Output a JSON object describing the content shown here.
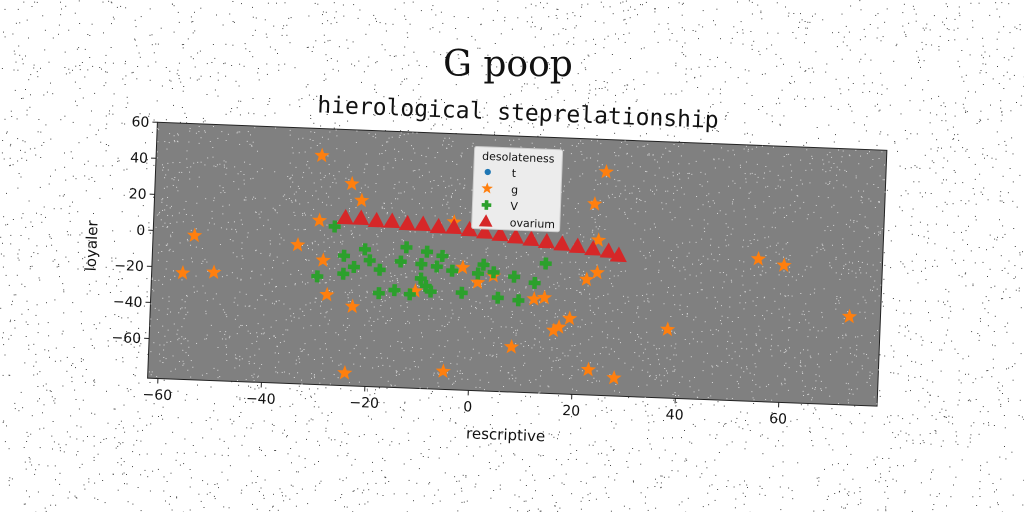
{
  "suptitle": "G poop",
  "chart_data": {
    "type": "scatter",
    "title": "hierological steprelationship",
    "xlabel": "rescriptive",
    "ylabel": "loyaler",
    "xlim": [
      -62,
      79
    ],
    "ylim": [
      -82,
      60
    ],
    "xticks": [
      -60,
      -40,
      -20,
      0,
      20,
      40,
      60
    ],
    "yticks": [
      60,
      40,
      20,
      0,
      -20,
      -40,
      -60
    ],
    "grid": false,
    "background": "#808080",
    "legend": {
      "title": "desolateness",
      "placement": "top-center"
    },
    "series": [
      {
        "name": "t",
        "marker": "circle",
        "color": "#1f77b4",
        "points": []
      },
      {
        "name": "g",
        "marker": "star",
        "color": "#ff7f0e",
        "points": [
          [
            -30,
            45
          ],
          [
            -24,
            30
          ],
          [
            -22,
            21
          ],
          [
            -30,
            9
          ],
          [
            -54,
            -2
          ],
          [
            -34,
            -5
          ],
          [
            -29,
            -13
          ],
          [
            -56,
            -23
          ],
          [
            -50,
            -22
          ],
          [
            -28,
            -32
          ],
          [
            -23,
            -38
          ],
          [
            -24,
            -75
          ],
          [
            -5,
            -72
          ],
          [
            -4,
            11
          ],
          [
            -2,
            -14
          ],
          [
            -11,
            -28
          ],
          [
            1,
            -22
          ],
          [
            4,
            -18
          ],
          [
            8,
            -57
          ],
          [
            12,
            -30
          ],
          [
            14,
            -29
          ],
          [
            16,
            -47
          ],
          [
            17,
            -45
          ],
          [
            19,
            -40
          ],
          [
            22,
            -18
          ],
          [
            23,
            24
          ],
          [
            24,
            4
          ],
          [
            24,
            -14
          ],
          [
            23,
            -68
          ],
          [
            25,
            42
          ],
          [
            28,
            -72
          ],
          [
            38,
            -44
          ],
          [
            55,
            -3
          ],
          [
            60,
            -6
          ],
          [
            73,
            -33
          ]
        ]
      },
      {
        "name": "V",
        "marker": "cross",
        "color": "#2ca02c",
        "points": [
          [
            -27,
            6
          ],
          [
            -25,
            -10
          ],
          [
            -23,
            -16
          ],
          [
            -25,
            -20
          ],
          [
            -20,
            -12
          ],
          [
            -18,
            -17
          ],
          [
            -14,
            -12
          ],
          [
            -10,
            -13
          ],
          [
            -7,
            -14
          ],
          [
            -13,
            -4
          ],
          [
            -9,
            -6
          ],
          [
            -6,
            -8
          ],
          [
            -21,
            -6
          ],
          [
            -18,
            -30
          ],
          [
            -15,
            -28
          ],
          [
            -12,
            -30
          ],
          [
            -10,
            -21
          ],
          [
            -9,
            -25
          ],
          [
            -8,
            -28
          ],
          [
            -4,
            -16
          ],
          [
            -2,
            -28
          ],
          [
            1,
            -17
          ],
          [
            2,
            -12
          ],
          [
            4,
            -16
          ],
          [
            5,
            -30
          ],
          [
            8,
            -18
          ],
          [
            9,
            -31
          ],
          [
            12,
            -21
          ],
          [
            14,
            -10
          ],
          [
            -30,
            -22
          ]
        ]
      },
      {
        "name": "ovarium",
        "marker": "triangle",
        "color": "#d62728",
        "points": [
          [
            -25,
            11
          ],
          [
            -22,
            11
          ],
          [
            -19,
            10
          ],
          [
            -16,
            10
          ],
          [
            -13,
            9
          ],
          [
            -10,
            9
          ],
          [
            -7,
            8
          ],
          [
            -4,
            8
          ],
          [
            -1,
            7
          ],
          [
            2,
            6
          ],
          [
            5,
            5
          ],
          [
            8,
            4
          ],
          [
            11,
            3
          ],
          [
            14,
            2
          ],
          [
            17,
            1
          ],
          [
            20,
            0
          ],
          [
            23,
            -1
          ],
          [
            26,
            -2
          ],
          [
            28,
            -4
          ]
        ]
      }
    ]
  }
}
